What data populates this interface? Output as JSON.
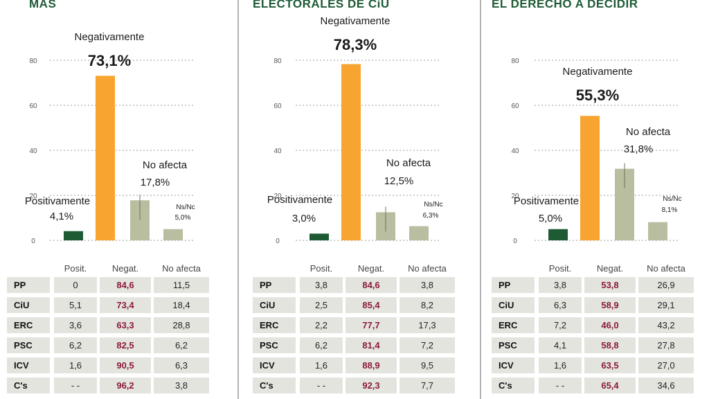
{
  "colors": {
    "positive": "#1e5b35",
    "negative": "#f7a431",
    "neutral": "#b9bea0",
    "nsnc": "#b9bea0",
    "title": "#1e5b35",
    "neg_text": "#8a1a3a",
    "row_bg": "#e4e4df"
  },
  "panels": [
    {
      "title": "MÁS",
      "chart": {
        "labels": [
          "Positivamente",
          "Negativamente",
          "No afecta",
          "Ns/Nc"
        ],
        "values": [
          "4,1%",
          "73,1%",
          "17,8%",
          "5,0%"
        ]
      },
      "table": {
        "headers": [
          "Posit.",
          "Negat.",
          "No afecta"
        ],
        "rows": [
          {
            "party": "PP",
            "pos": "0",
            "neg": "84,6",
            "na": "11,5"
          },
          {
            "party": "CiU",
            "pos": "5,1",
            "neg": "73,4",
            "na": "18,4"
          },
          {
            "party": "ERC",
            "pos": "3,6",
            "neg": "63,3",
            "na": "28,8"
          },
          {
            "party": "PSC",
            "pos": "6,2",
            "neg": "82,5",
            "na": "6,2"
          },
          {
            "party": "ICV",
            "pos": "1,6",
            "neg": "90,5",
            "na": "6,3"
          },
          {
            "party": "C's",
            "pos": "- -",
            "neg": "96,2",
            "na": "3,8"
          }
        ]
      }
    },
    {
      "title": "ELECTORALES DE CiU",
      "chart": {
        "labels": [
          "Positivamente",
          "Negativamente",
          "No afecta",
          "Ns/Nc"
        ],
        "values": [
          "3,0%",
          "78,3%",
          "12,5%",
          "6,3%"
        ]
      },
      "table": {
        "headers": [
          "Posit.",
          "Negat.",
          "No afecta"
        ],
        "rows": [
          {
            "party": "PP",
            "pos": "3,8",
            "neg": "84,6",
            "na": "3,8"
          },
          {
            "party": "CiU",
            "pos": "2,5",
            "neg": "85,4",
            "na": "8,2"
          },
          {
            "party": "ERC",
            "pos": "2,2",
            "neg": "77,7",
            "na": "17,3"
          },
          {
            "party": "PSC",
            "pos": "6,2",
            "neg": "81,4",
            "na": "7,2"
          },
          {
            "party": "ICV",
            "pos": "1,6",
            "neg": "88,9",
            "na": "9,5"
          },
          {
            "party": "C's",
            "pos": "- -",
            "neg": "92,3",
            "na": "7,7"
          }
        ]
      }
    },
    {
      "title": "EL DERECHO A DECIDIR",
      "chart": {
        "labels": [
          "Positivamente",
          "Negativamente",
          "No afecta",
          "Ns/Nc"
        ],
        "values": [
          "5,0%",
          "55,3%",
          "31,8%",
          "8,1%"
        ]
      },
      "table": {
        "headers": [
          "Posit.",
          "Negat.",
          "No afecta"
        ],
        "rows": [
          {
            "party": "PP",
            "pos": "3,8",
            "neg": "53,8",
            "na": "26,9"
          },
          {
            "party": "CiU",
            "pos": "6,3",
            "neg": "58,9",
            "na": "29,1"
          },
          {
            "party": "ERC",
            "pos": "7,2",
            "neg": "46,0",
            "na": "43,2"
          },
          {
            "party": "PSC",
            "pos": "4,1",
            "neg": "58,8",
            "na": "27,8"
          },
          {
            "party": "ICV",
            "pos": "1,6",
            "neg": "63,5",
            "na": "27,0"
          },
          {
            "party": "C's",
            "pos": "- -",
            "neg": "65,4",
            "na": "34,6"
          }
        ]
      }
    }
  ],
  "chart_data": [
    {
      "type": "bar",
      "categories": [
        "Positivamente",
        "Negativamente",
        "No afecta",
        "Ns/Nc"
      ],
      "values": [
        4.1,
        73.1,
        17.8,
        5.0
      ],
      "ylim": [
        0,
        80
      ],
      "yticks": [
        0,
        20,
        40,
        60,
        80
      ],
      "grid": true
    },
    {
      "type": "bar",
      "categories": [
        "Positivamente",
        "Negativamente",
        "No afecta",
        "Ns/Nc"
      ],
      "values": [
        3.0,
        78.3,
        12.5,
        6.3
      ],
      "ylim": [
        0,
        80
      ],
      "yticks": [
        0,
        20,
        40,
        60,
        80
      ],
      "grid": true
    },
    {
      "type": "bar",
      "categories": [
        "Positivamente",
        "Negativamente",
        "No afecta",
        "Ns/Nc"
      ],
      "values": [
        5.0,
        55.3,
        31.8,
        8.1
      ],
      "ylim": [
        0,
        80
      ],
      "yticks": [
        0,
        20,
        40,
        60,
        80
      ],
      "grid": true
    }
  ]
}
